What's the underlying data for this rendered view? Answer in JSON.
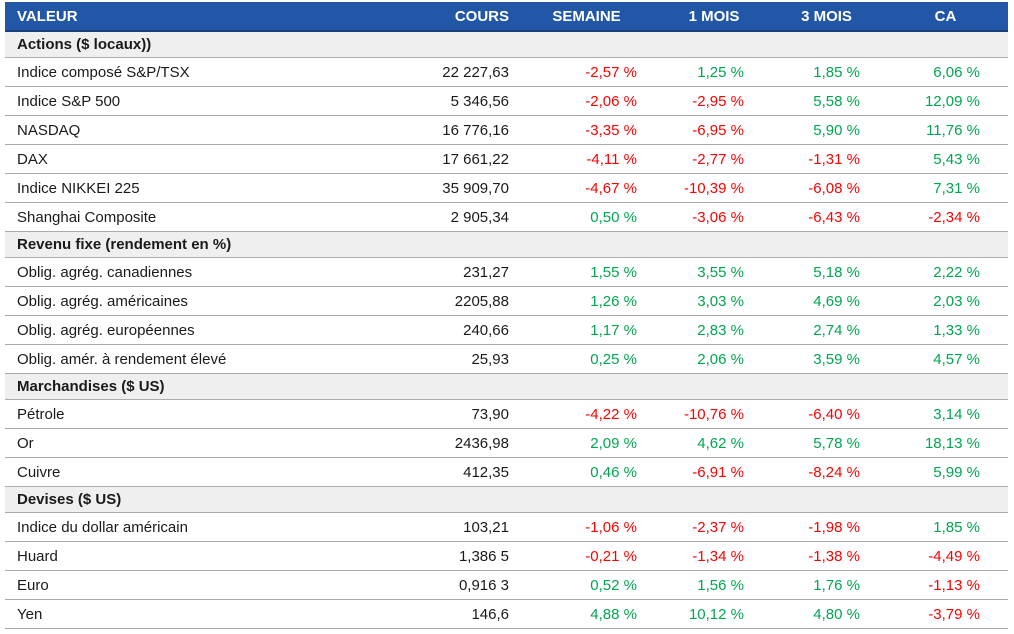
{
  "chart_data": {
    "type": "table",
    "columns": [
      "VALEUR",
      "COURS",
      "SEMAINE",
      "1 MOIS",
      "3 MOIS",
      "CA"
    ],
    "sections": [
      {
        "title": "Actions ($ locaux))",
        "rows": [
          {
            "valeur": "Indice composé S&P/TSX",
            "cours": "22 227,63",
            "semaine": "-2,57 %",
            "mois1": "1,25 %",
            "mois3": "1,85 %",
            "ca": "6,06 %"
          },
          {
            "valeur": "Indice S&P 500",
            "cours": "5 346,56",
            "semaine": "-2,06 %",
            "mois1": "-2,95 %",
            "mois3": "5,58 %",
            "ca": "12,09 %"
          },
          {
            "valeur": "NASDAQ",
            "cours": "16 776,16",
            "semaine": "-3,35 %",
            "mois1": "-6,95 %",
            "mois3": "5,90 %",
            "ca": "11,76 %"
          },
          {
            "valeur": "DAX",
            "cours": "17 661,22",
            "semaine": "-4,11 %",
            "mois1": "-2,77 %",
            "mois3": "-1,31 %",
            "ca": "5,43 %"
          },
          {
            "valeur": "Indice NIKKEI 225",
            "cours": "35 909,70",
            "semaine": "-4,67 %",
            "mois1": "-10,39 %",
            "mois3": "-6,08 %",
            "ca": "7,31 %"
          },
          {
            "valeur": "Shanghai Composite",
            "cours": "2 905,34",
            "semaine": "0,50 %",
            "mois1": "-3,06 %",
            "mois3": "-6,43 %",
            "ca": "-2,34 %"
          }
        ]
      },
      {
        "title": "Revenu fixe (rendement en %)",
        "rows": [
          {
            "valeur": "Oblig. agrég. canadiennes",
            "cours": "231,27",
            "semaine": "1,55 %",
            "mois1": "3,55 %",
            "mois3": "5,18 %",
            "ca": "2,22 %"
          },
          {
            "valeur": "Oblig. agrég. américaines",
            "cours": "2205,88",
            "semaine": "1,26 %",
            "mois1": "3,03 %",
            "mois3": "4,69 %",
            "ca": "2,03 %"
          },
          {
            "valeur": "Oblig. agrég. européennes",
            "cours": "240,66",
            "semaine": "1,17 %",
            "mois1": "2,83 %",
            "mois3": "2,74 %",
            "ca": "1,33 %"
          },
          {
            "valeur": "Oblig. amér. à rendement élevé",
            "cours": "25,93",
            "semaine": "0,25 %",
            "mois1": "2,06 %",
            "mois3": "3,59 %",
            "ca": "4,57 %"
          }
        ]
      },
      {
        "title": "Marchandises ($ US)",
        "rows": [
          {
            "valeur": "Pétrole",
            "cours": "73,90",
            "semaine": "-4,22 %",
            "mois1": "-10,76 %",
            "mois3": "-6,40 %",
            "ca": "3,14 %"
          },
          {
            "valeur": "Or",
            "cours": "2436,98",
            "semaine": "2,09 %",
            "mois1": "4,62 %",
            "mois3": "5,78 %",
            "ca": "18,13 %"
          },
          {
            "valeur": "Cuivre",
            "cours": "412,35",
            "semaine": "0,46 %",
            "mois1": "-6,91 %",
            "mois3": "-8,24 %",
            "ca": "5,99 %"
          }
        ]
      },
      {
        "title": "Devises ($ US)",
        "rows": [
          {
            "valeur": "Indice du dollar américain",
            "cours": "103,21",
            "semaine": "-1,06 %",
            "mois1": "-2,37 %",
            "mois3": "-1,98 %",
            "ca": "1,85 %"
          },
          {
            "valeur": "Huard",
            "cours": "1,386 5",
            "semaine": "-0,21 %",
            "mois1": "-1,34 %",
            "mois3": "-1,38 %",
            "ca": "-4,49 %"
          },
          {
            "valeur": "Euro",
            "cours": "0,916 3",
            "semaine": "0,52 %",
            "mois1": "1,56 %",
            "mois3": "1,76 %",
            "ca": "-1,13 %"
          },
          {
            "valeur": "Yen",
            "cours": "146,6",
            "semaine": "4,88 %",
            "mois1": "10,12 %",
            "mois3": "4,80 %",
            "ca": "-3,79 %"
          }
        ]
      }
    ]
  },
  "colors": {
    "header_bg": "#2157A6",
    "header_border": "#1B3F7A",
    "section_bg": "#EFEFEF",
    "row_border": "#ABABAB",
    "positive": "#00A651",
    "negative": "#FF0000",
    "text": "#1A1A1A"
  }
}
